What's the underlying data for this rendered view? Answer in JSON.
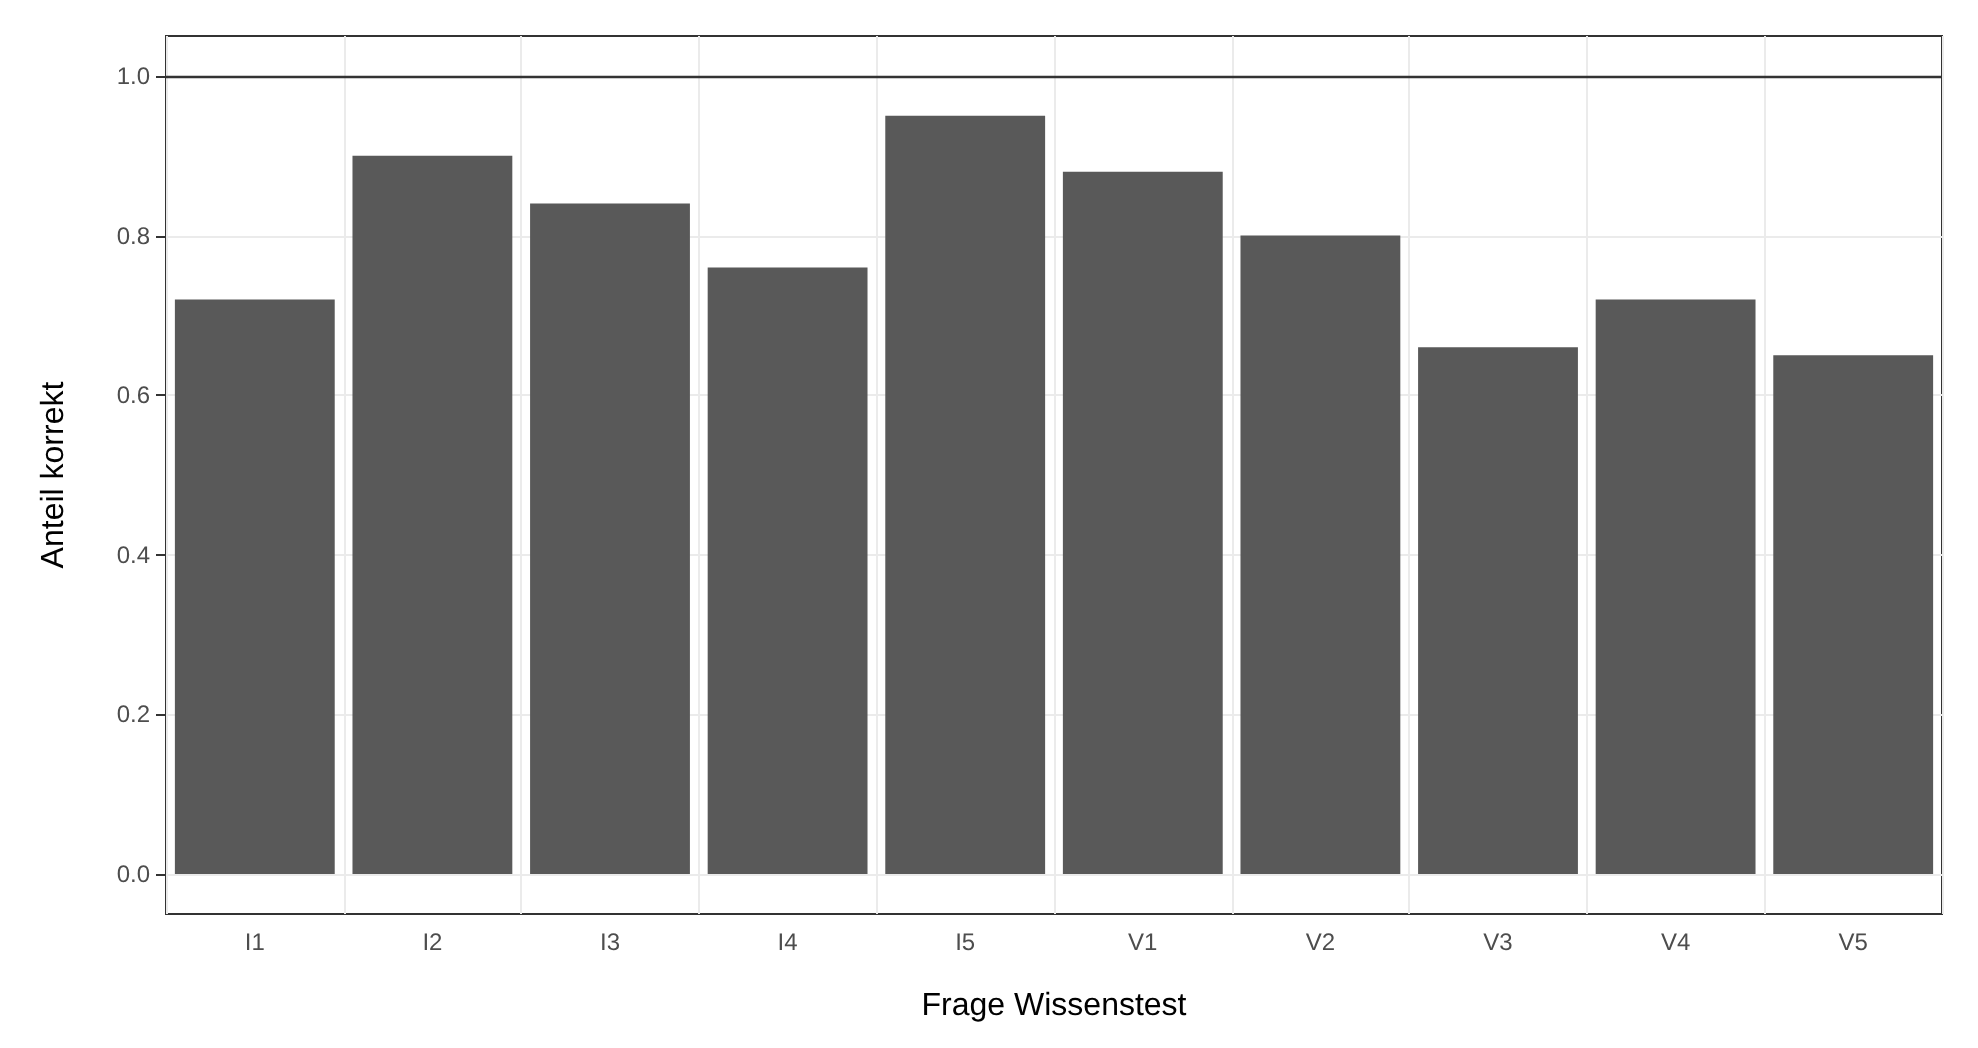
{
  "chart_data": {
    "type": "bar",
    "xlabel": "Frage Wissenstest",
    "ylabel": "Anteil korrekt",
    "categories": [
      "I1",
      "I2",
      "I3",
      "I4",
      "I5",
      "V1",
      "V2",
      "V3",
      "V4",
      "V5"
    ],
    "values": [
      0.72,
      0.9,
      0.84,
      0.76,
      0.95,
      0.88,
      0.8,
      0.66,
      0.72,
      0.65
    ],
    "color": "#595959",
    "ylim": [
      -0.05,
      1.05
    ],
    "yticks": [
      {
        "value": 0,
        "label": "0.0"
      },
      {
        "value": 0.2,
        "label": "0.2"
      },
      {
        "value": 0.4,
        "label": "0.4"
      },
      {
        "value": 0.6,
        "label": "0.6"
      },
      {
        "value": 0.8,
        "label": "0.8"
      },
      {
        "value": 1,
        "label": "1.0"
      }
    ],
    "grid": true,
    "ref_lines": [
      {
        "axis": "y",
        "value": 1,
        "color": "#333333"
      }
    ]
  }
}
